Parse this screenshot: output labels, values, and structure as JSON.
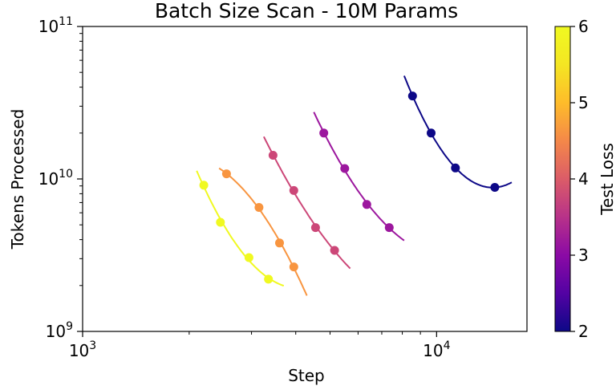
{
  "chart_data": {
    "type": "scatter",
    "title": "Batch Size Scan - 10M Params",
    "xlabel": "Step",
    "ylabel": "Tokens Processed",
    "xscale": "log",
    "yscale": "log",
    "xlim": [
      1000,
      18000
    ],
    "ylim": [
      1000000000,
      100000000000
    ],
    "x_ticks": [
      {
        "base": "10",
        "exp": "3",
        "value": 1000
      },
      {
        "base": "10",
        "exp": "4",
        "value": 10000
      }
    ],
    "y_ticks": [
      {
        "base": "10",
        "exp": "9",
        "value": 1000000000
      },
      {
        "base": "10",
        "exp": "10",
        "value": 10000000000
      },
      {
        "base": "10",
        "exp": "11",
        "value": 100000000000
      }
    ],
    "grid": false,
    "colorbar": {
      "label": "Test Loss",
      "range": [
        2,
        6
      ],
      "ticks": [
        "2",
        "3",
        "4",
        "5",
        "6"
      ],
      "colormap": "plasma"
    },
    "series": [
      {
        "loss": 6.0,
        "color": "#f0f921",
        "points": [
          {
            "x": 2200,
            "y": 9100000000
          },
          {
            "x": 2450,
            "y": 5200000000
          },
          {
            "x": 2950,
            "y": 3050000000
          },
          {
            "x": 3350,
            "y": 2200000000
          }
        ],
        "curve": {
          "x_start": 2100,
          "x_end": 3700
        }
      },
      {
        "loss": 5.0,
        "color": "#f89540",
        "points": [
          {
            "x": 2550,
            "y": 10800000000
          },
          {
            "x": 3150,
            "y": 6500000000
          },
          {
            "x": 3600,
            "y": 3800000000
          },
          {
            "x": 3950,
            "y": 2650000000
          }
        ],
        "curve": {
          "x_start": 2430,
          "x_end": 4300
        }
      },
      {
        "loss": 4.0,
        "color": "#cc4778",
        "points": [
          {
            "x": 3450,
            "y": 14300000000
          },
          {
            "x": 3950,
            "y": 8400000000
          },
          {
            "x": 4550,
            "y": 4800000000
          },
          {
            "x": 5150,
            "y": 3400000000
          }
        ],
        "curve": {
          "x_start": 3250,
          "x_end": 5700
        }
      },
      {
        "loss": 3.0,
        "color": "#9c179e",
        "points": [
          {
            "x": 4800,
            "y": 20000000000
          },
          {
            "x": 5500,
            "y": 11700000000
          },
          {
            "x": 6350,
            "y": 6800000000
          },
          {
            "x": 7350,
            "y": 4800000000
          }
        ],
        "curve": {
          "x_start": 4500,
          "x_end": 8100
        }
      },
      {
        "loss": 2.0,
        "color": "#0d0887",
        "points": [
          {
            "x": 8550,
            "y": 35000000000
          },
          {
            "x": 9650,
            "y": 20000000000
          },
          {
            "x": 11300,
            "y": 11800000000
          },
          {
            "x": 14600,
            "y": 8800000000
          }
        ],
        "curve": {
          "x_start": 8100,
          "x_end": 16300
        }
      }
    ]
  }
}
